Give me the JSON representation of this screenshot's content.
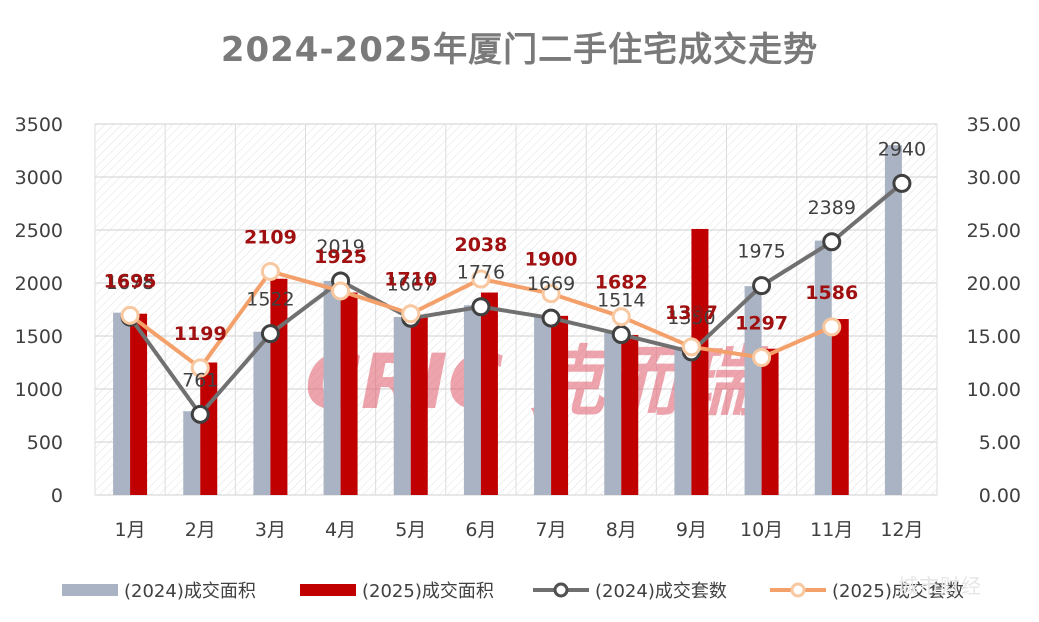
{
  "chart_data": {
    "type": "bar+line",
    "title": "2024-2025年厦门二手住宅成交走势",
    "categories": [
      "1月",
      "2月",
      "3月",
      "4月",
      "5月",
      "6月",
      "7月",
      "8月",
      "9月",
      "10月",
      "11月",
      "12月"
    ],
    "y_left": {
      "min": 0,
      "max": 3500,
      "ticks": [
        "0",
        "500",
        "1000",
        "1500",
        "2000",
        "2500",
        "3000",
        "3500"
      ]
    },
    "y_right": {
      "min": 0,
      "max": 35,
      "ticks": [
        "0.00",
        "5.00",
        "10.00",
        "15.00",
        "20.00",
        "25.00",
        "30.00",
        "35.00"
      ]
    },
    "series": [
      {
        "name": "(2024)成交面积",
        "type": "bar",
        "axis": "left",
        "color": "#a9b3c4",
        "values": [
          1720,
          790,
          1540,
          2020,
          1680,
          1790,
          1690,
          1530,
          1370,
          1970,
          2400,
          3300
        ]
      },
      {
        "name": "(2025)成交面积",
        "type": "bar",
        "axis": "left",
        "color": "#c00000",
        "values": [
          1710,
          1250,
          2040,
          1910,
          1690,
          1910,
          1690,
          1510,
          2510,
          1380,
          1660,
          null
        ]
      },
      {
        "name": "(2024)成交套数",
        "type": "line",
        "axis": "right",
        "color": "#707070",
        "values": [
          16.78,
          7.61,
          15.22,
          20.19,
          16.67,
          17.76,
          16.69,
          15.14,
          13.5,
          19.75,
          23.89,
          29.4
        ],
        "labels": [
          "1678",
          "761",
          "1522",
          "2019",
          "1667",
          "1776",
          "1669",
          "1514",
          "1350",
          "1975",
          "2389",
          "2940"
        ]
      },
      {
        "name": "(2025)成交套数",
        "type": "line",
        "axis": "right",
        "color": "#f4a06a",
        "values": [
          16.95,
          11.99,
          21.09,
          19.25,
          17.1,
          20.38,
          19.0,
          16.82,
          13.97,
          12.97,
          15.86,
          null
        ],
        "labels": [
          "1695",
          "1199",
          "2109",
          "1925",
          "1710",
          "2038",
          "1900",
          "1682",
          "1397",
          "1297",
          "1586",
          ""
        ]
      }
    ],
    "legend_position": "bottom"
  },
  "watermark": {
    "logo": "CRIC 克而瑞",
    "corner_text": "城市财经"
  }
}
